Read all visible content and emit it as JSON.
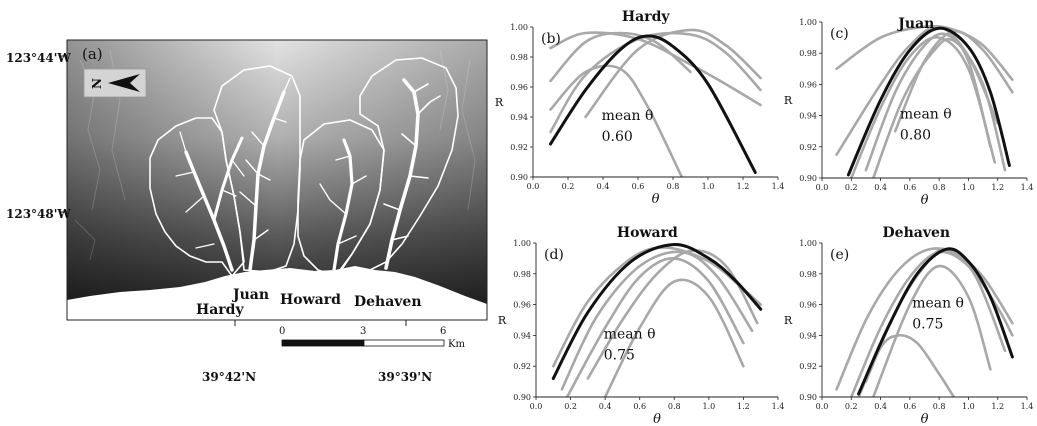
{
  "map": {
    "panel_label": "(a)",
    "north_label": "N",
    "left_coords": [
      "123°44'W",
      "123°48'W"
    ],
    "bottom_coords": [
      "39°42'N",
      "39°39'N"
    ],
    "basins": [
      "Hardy",
      "Juan",
      "Howard",
      "Dehaven"
    ],
    "scale": {
      "ticks": [
        "0",
        "3",
        "6"
      ],
      "unit": "Km"
    }
  },
  "chart_data": [
    {
      "type": "line",
      "panel": "(b)",
      "title": "Hardy",
      "xlabel": "θ",
      "ylabel": "R",
      "xlim": [
        0,
        1.4
      ],
      "ylim": [
        0.9,
        1.0
      ],
      "xticks": [
        "0.0",
        "0.2",
        "0.4",
        "0.6",
        "0.8",
        "1.0",
        "1.2",
        "1.4"
      ],
      "yticks": [
        "0.90",
        "0.92",
        "0.94",
        "0.96",
        "0.98",
        "1.00"
      ],
      "annotation": {
        "label": "mean θ",
        "value": "0.60"
      },
      "mean_color": "#111111",
      "series_color": "#a8a8a8",
      "mean_curve": {
        "x": [
          0.1,
          0.3,
          0.5,
          0.65,
          0.8,
          1.0,
          1.27
        ],
        "y": [
          0.922,
          0.958,
          0.985,
          0.994,
          0.987,
          0.962,
          0.903
        ]
      },
      "series": [
        {
          "x": [
            0.1,
            0.3,
            0.6,
            0.9,
            1.1,
            1.3
          ],
          "y": [
            0.986,
            0.996,
            0.992,
            0.975,
            0.962,
            0.948
          ]
        },
        {
          "x": [
            0.1,
            0.3,
            0.5,
            0.7,
            0.9
          ],
          "y": [
            0.964,
            0.99,
            0.996,
            0.99,
            0.97
          ]
        },
        {
          "x": [
            0.1,
            0.3,
            0.5,
            0.65,
            0.85
          ],
          "y": [
            0.945,
            0.97,
            0.972,
            0.948,
            0.9
          ]
        },
        {
          "x": [
            0.1,
            0.3,
            0.6,
            0.9,
            1.1,
            1.3
          ],
          "y": [
            0.93,
            0.968,
            0.992,
            0.995,
            0.983,
            0.958
          ]
        },
        {
          "x": [
            0.3,
            0.6,
            0.9,
            1.1,
            1.3
          ],
          "y": [
            0.94,
            0.985,
            0.998,
            0.988,
            0.966
          ]
        }
      ]
    },
    {
      "type": "line",
      "panel": "(c)",
      "title": "Juan",
      "xlabel": "θ",
      "ylabel": "R",
      "xlim": [
        0,
        1.4
      ],
      "ylim": [
        0.9,
        1.0
      ],
      "xticks": [
        "0.0",
        "0.2",
        "0.4",
        "0.6",
        "0.8",
        "1.0",
        "1.2",
        "1.4"
      ],
      "yticks": [
        "0.90",
        "0.92",
        "0.94",
        "0.96",
        "0.98",
        "1.00"
      ],
      "annotation": {
        "label": "mean θ",
        "value": "0.80"
      },
      "mean_color": "#111111",
      "series_color": "#a8a8a8",
      "mean_curve": {
        "x": [
          0.18,
          0.4,
          0.6,
          0.8,
          1.0,
          1.15,
          1.28
        ],
        "y": [
          0.902,
          0.95,
          0.982,
          0.996,
          0.984,
          0.955,
          0.908
        ]
      },
      "series": [
        {
          "x": [
            0.1,
            0.4,
            0.7,
            0.9,
            1.1,
            1.3
          ],
          "y": [
            0.97,
            0.99,
            0.997,
            0.995,
            0.985,
            0.963
          ]
        },
        {
          "x": [
            0.1,
            0.4,
            0.6,
            0.8,
            1.0,
            1.2
          ],
          "y": [
            0.915,
            0.96,
            0.985,
            0.997,
            0.978,
            0.935
          ]
        },
        {
          "x": [
            0.2,
            0.4,
            0.6,
            0.8,
            1.0,
            1.18
          ],
          "y": [
            0.9,
            0.945,
            0.978,
            0.99,
            0.97,
            0.91
          ]
        },
        {
          "x": [
            0.3,
            0.5,
            0.7,
            0.85,
            1.0,
            1.15
          ],
          "y": [
            0.905,
            0.955,
            0.985,
            0.992,
            0.975,
            0.92
          ]
        },
        {
          "x": [
            0.35,
            0.55,
            0.75,
            0.9,
            1.1,
            1.25
          ],
          "y": [
            0.9,
            0.95,
            0.98,
            0.988,
            0.96,
            0.905
          ]
        },
        {
          "x": [
            0.5,
            0.7,
            0.9,
            1.1,
            1.3
          ],
          "y": [
            0.93,
            0.975,
            0.994,
            0.982,
            0.955
          ]
        }
      ]
    },
    {
      "type": "line",
      "panel": "(d)",
      "title": "Howard",
      "xlabel": "θ",
      "ylabel": "R",
      "xlim": [
        0,
        1.4
      ],
      "ylim": [
        0.9,
        1.0
      ],
      "xticks": [
        "0.0",
        "0.2",
        "0.4",
        "0.6",
        "0.8",
        "1.0",
        "1.2",
        "1.4"
      ],
      "yticks": [
        "0.90",
        "0.92",
        "0.94",
        "0.96",
        "0.98",
        "1.00"
      ],
      "annotation": {
        "label": "mean θ",
        "value": "0.75"
      },
      "mean_color": "#111111",
      "series_color": "#a8a8a8",
      "mean_curve": {
        "x": [
          0.1,
          0.3,
          0.55,
          0.8,
          1.0,
          1.15,
          1.3
        ],
        "y": [
          0.912,
          0.955,
          0.988,
          0.999,
          0.99,
          0.976,
          0.957
        ]
      },
      "series": [
        {
          "x": [
            0.1,
            0.3,
            0.55,
            0.75,
            1.0,
            1.2,
            1.3
          ],
          "y": [
            0.92,
            0.962,
            0.99,
            0.997,
            0.988,
            0.97,
            0.96
          ]
        },
        {
          "x": [
            0.15,
            0.35,
            0.6,
            0.85,
            1.05,
            1.25
          ],
          "y": [
            0.905,
            0.952,
            0.985,
            0.994,
            0.978,
            0.943
          ]
        },
        {
          "x": [
            0.18,
            0.4,
            0.6,
            0.8,
            1.0,
            1.2
          ],
          "y": [
            0.9,
            0.945,
            0.978,
            0.99,
            0.975,
            0.935
          ]
        },
        {
          "x": [
            0.3,
            0.5,
            0.7,
            0.9,
            1.1,
            1.28
          ],
          "y": [
            0.912,
            0.95,
            0.98,
            0.995,
            0.985,
            0.948
          ]
        },
        {
          "x": [
            0.4,
            0.6,
            0.8,
            1.0,
            1.2
          ],
          "y": [
            0.9,
            0.945,
            0.975,
            0.965,
            0.92
          ]
        }
      ]
    },
    {
      "type": "line",
      "panel": "(e)",
      "title": "Dehaven",
      "xlabel": "θ",
      "ylabel": "R",
      "xlim": [
        0,
        1.4
      ],
      "ylim": [
        0.9,
        1.0
      ],
      "xticks": [
        "0.0",
        "0.2",
        "0.4",
        "0.6",
        "0.8",
        "1.0",
        "1.2",
        "1.4"
      ],
      "yticks": [
        "0.90",
        "0.92",
        "0.94",
        "0.96",
        "0.98",
        "1.00"
      ],
      "annotation": {
        "label": "mean θ",
        "value": "0.75"
      },
      "mean_color": "#111111",
      "series_color": "#a8a8a8",
      "mean_curve": {
        "x": [
          0.25,
          0.45,
          0.65,
          0.85,
          1.0,
          1.15,
          1.3
        ],
        "y": [
          0.902,
          0.945,
          0.98,
          0.996,
          0.988,
          0.965,
          0.926
        ]
      },
      "series": [
        {
          "x": [
            0.1,
            0.3,
            0.5,
            0.7,
            0.9,
            1.1,
            1.3
          ],
          "y": [
            0.905,
            0.95,
            0.98,
            0.995,
            0.994,
            0.978,
            0.948
          ]
        },
        {
          "x": [
            0.2,
            0.4,
            0.6,
            0.8,
            1.0,
            1.2,
            1.3
          ],
          "y": [
            0.9,
            0.945,
            0.978,
            0.994,
            0.985,
            0.958,
            0.94
          ]
        },
        {
          "x": [
            0.3,
            0.5,
            0.7,
            0.85,
            1.05,
            1.25
          ],
          "y": [
            0.91,
            0.955,
            0.985,
            0.996,
            0.978,
            0.93
          ]
        },
        {
          "x": [
            0.35,
            0.6,
            0.8,
            1.0,
            1.15
          ],
          "y": [
            0.9,
            0.96,
            0.985,
            0.965,
            0.918
          ]
        },
        {
          "x": [
            0.25,
            0.4,
            0.52,
            0.65,
            0.8,
            0.9
          ],
          "y": [
            0.9,
            0.932,
            0.94,
            0.935,
            0.915,
            0.9
          ]
        }
      ]
    }
  ]
}
